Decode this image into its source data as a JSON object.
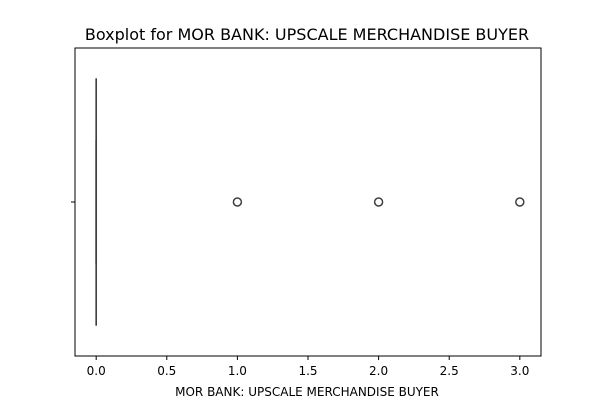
{
  "chart_data": {
    "type": "boxplot",
    "orientation": "horizontal",
    "title": "Boxplot for MOR BANK: UPSCALE MERCHANDISE BUYER",
    "xlabel": "MOR BANK: UPSCALE MERCHANDISE BUYER",
    "ylabel": "",
    "xlim": [
      -0.15,
      3.15
    ],
    "x_ticks": [
      0.0,
      0.5,
      1.0,
      1.5,
      2.0,
      2.5,
      3.0
    ],
    "x_tick_labels": [
      "0.0",
      "0.5",
      "1.0",
      "1.5",
      "2.0",
      "2.5",
      "3.0"
    ],
    "grid": false,
    "box": {
      "q1": 0,
      "median": 0,
      "q3": 0,
      "whisker_low": 0,
      "whisker_high": 0
    },
    "outliers": [
      1,
      2,
      3
    ],
    "colors": {
      "box_line": "#3f3f3f",
      "outlier_edge": "#3f3f3f",
      "axis": "#000000"
    }
  }
}
